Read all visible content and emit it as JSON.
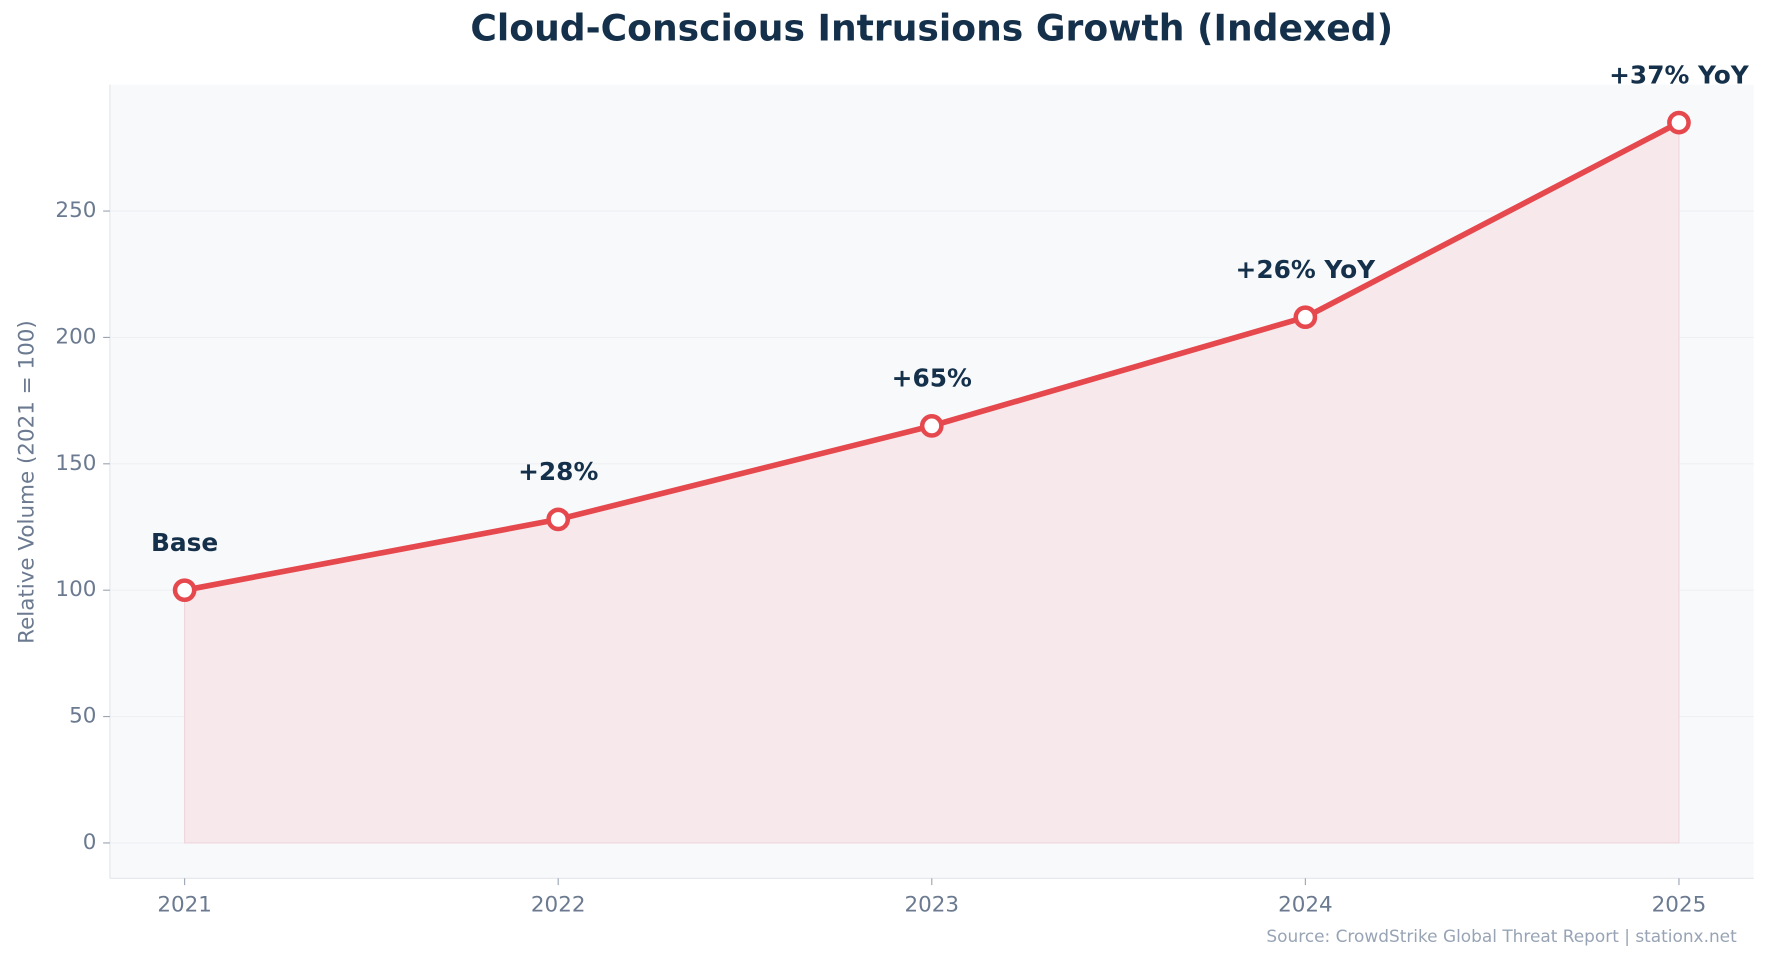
{
  "chart_data": {
    "type": "line",
    "title": "Cloud-Conscious Intrusions Growth (Indexed)",
    "y_label": "Relative Volume (2021 = 100)",
    "source": "Source: CrowdStrike Global Threat Report | stationx.net",
    "categories": [
      "2021",
      "2022",
      "2023",
      "2024",
      "2025"
    ],
    "values": [
      100,
      128,
      165,
      208,
      285
    ],
    "annotations": [
      "Base",
      "+28%",
      "+65%",
      "+26% YoY",
      "+37% YoY"
    ],
    "color": "#e5484d",
    "fill_color": "#f6e8eb",
    "ylim": [
      -14,
      300
    ],
    "yticks": [
      0,
      50,
      100,
      150,
      200,
      250
    ],
    "grid": true
  }
}
